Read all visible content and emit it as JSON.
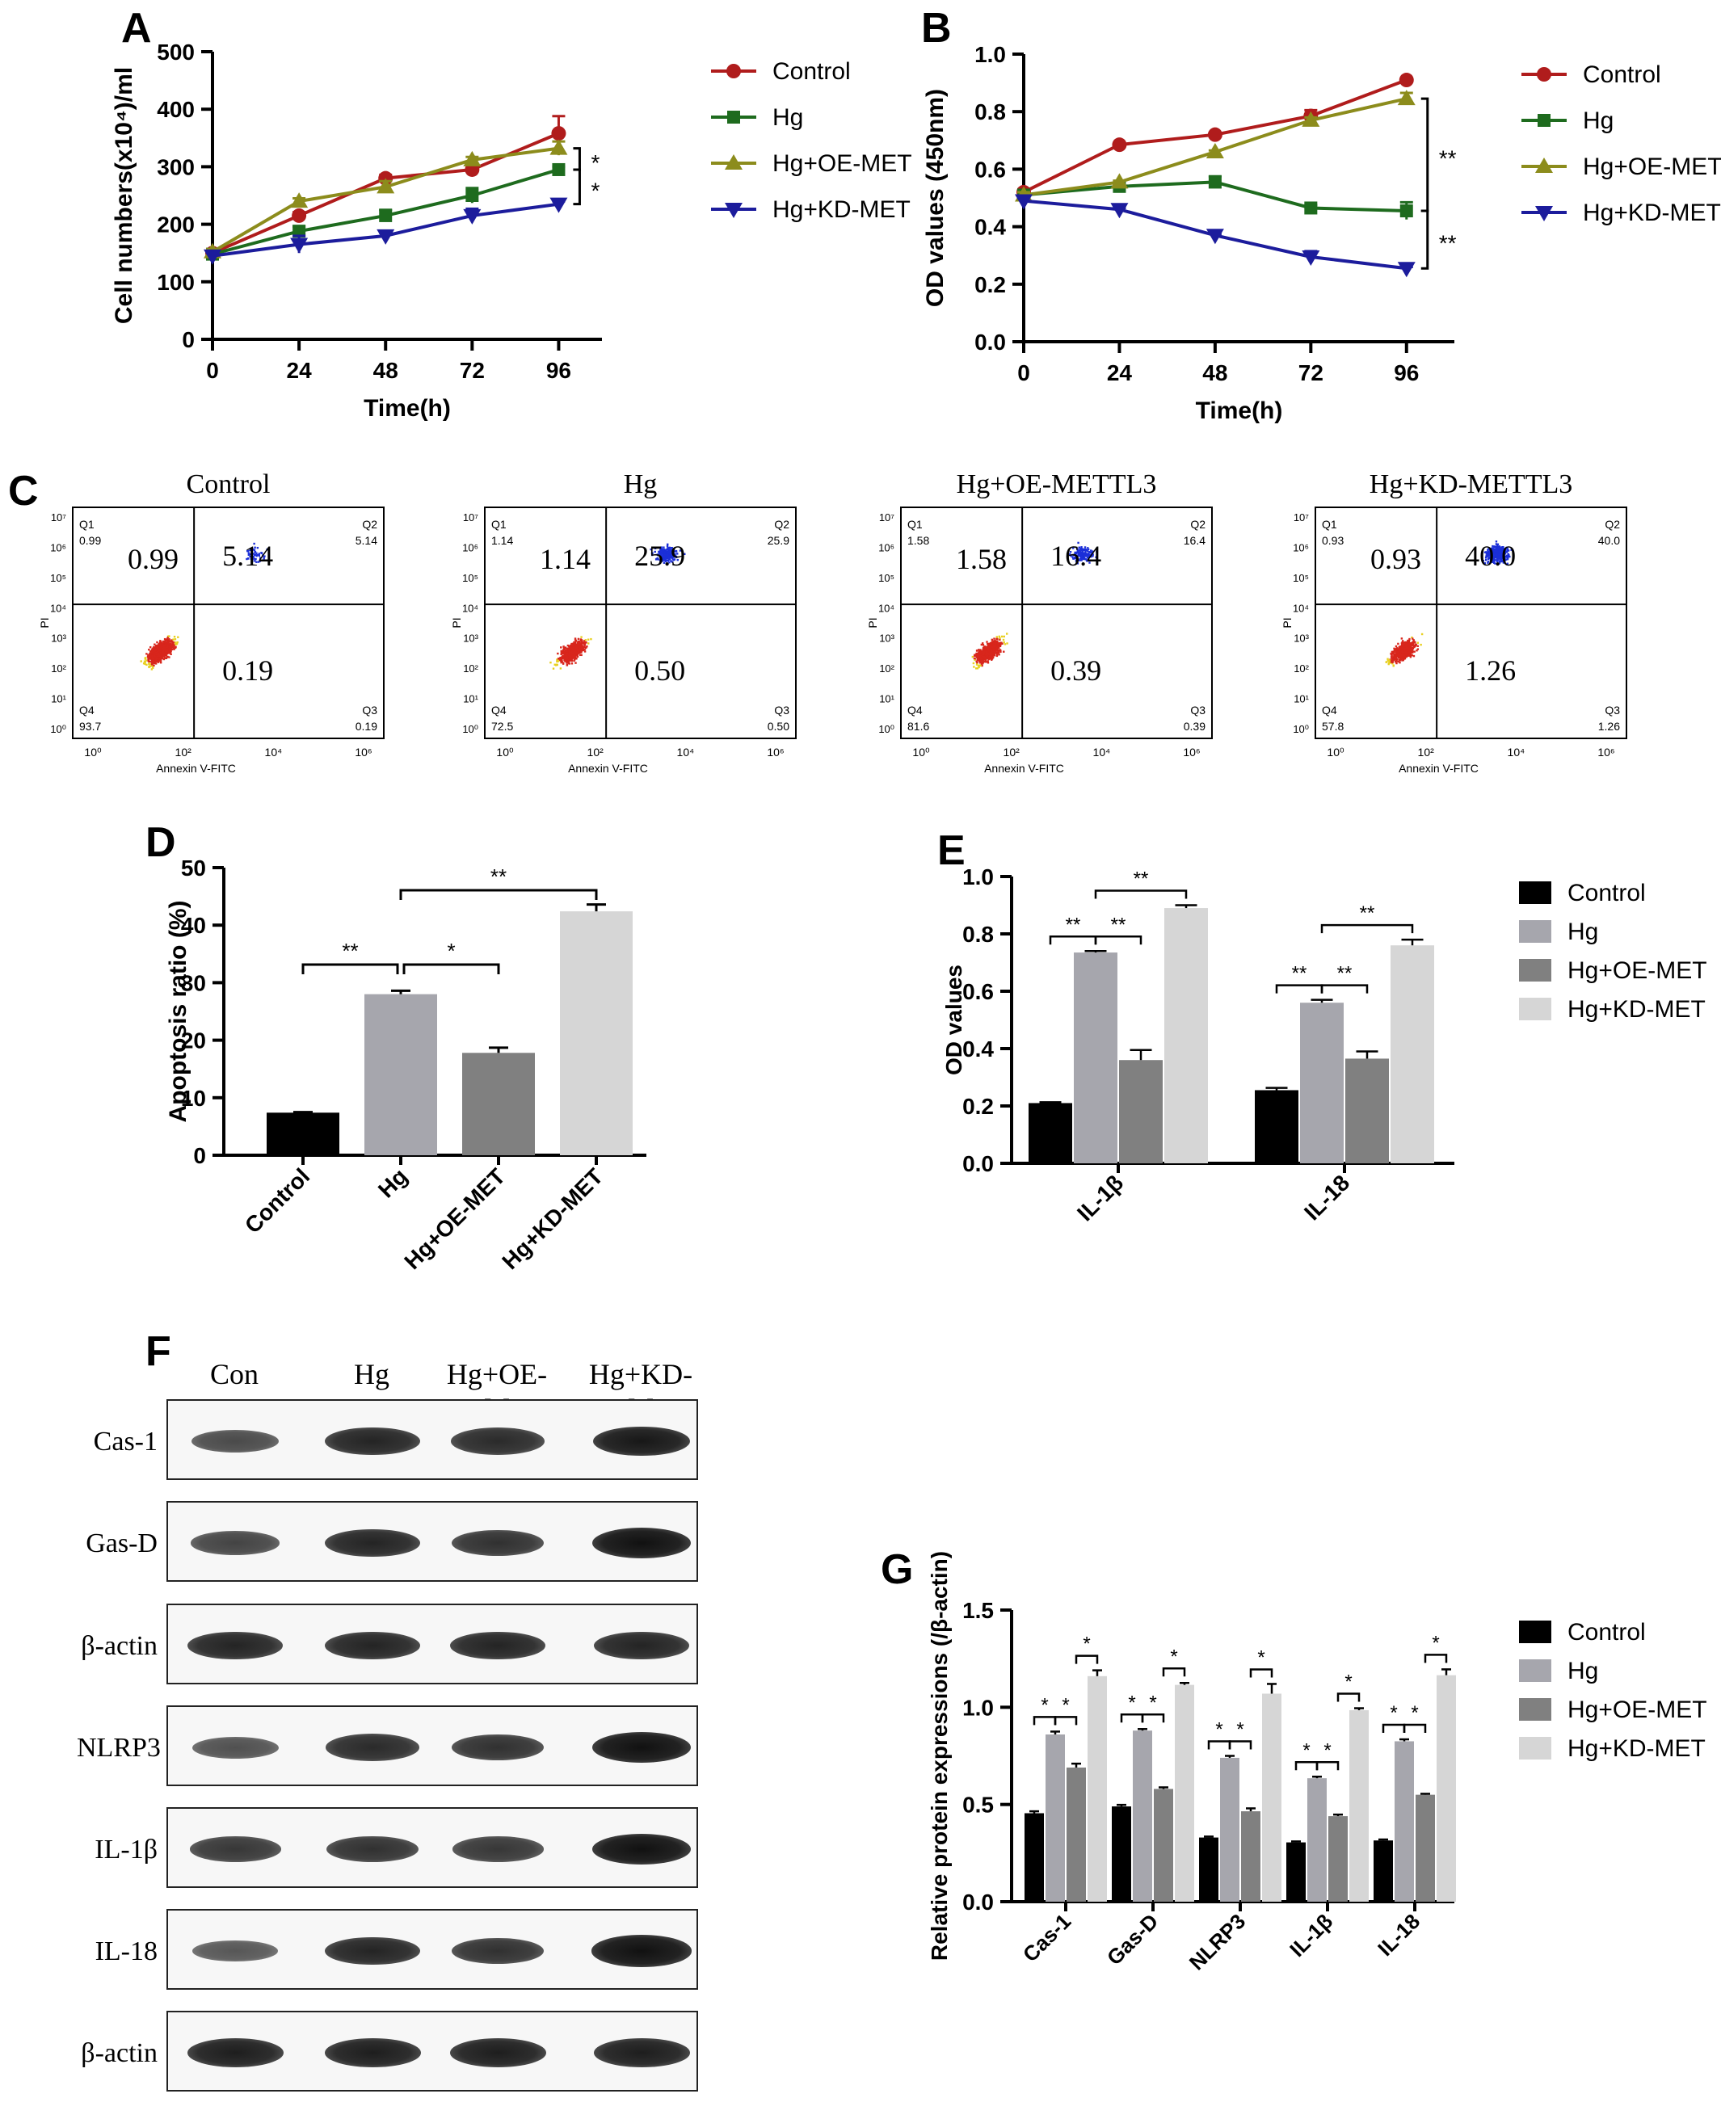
{
  "panels": {
    "A": "A",
    "B": "B",
    "C": "C",
    "D": "D",
    "E": "E",
    "F": "F",
    "G": "G"
  },
  "colors": {
    "control_line": "#b01c1c",
    "hg_line": "#1e6b1e",
    "oe_line": "#8c8c1c",
    "kd_line": "#1c1c9c",
    "bar_control": "#000000",
    "bar_hg": "#a6a6ad",
    "bar_oe": "#808080",
    "bar_kd": "#d6d6d6"
  },
  "chart_data": [
    {
      "id": "A",
      "type": "line",
      "xlabel": "Time(h)",
      "ylabel": "Cell numbers(x10⁴)/ml",
      "x": [
        0,
        24,
        48,
        72,
        96
      ],
      "xlim": [
        0,
        108
      ],
      "ylim": [
        0,
        500
      ],
      "yticks": [
        0,
        100,
        200,
        300,
        400,
        500
      ],
      "series": [
        {
          "name": "Control",
          "marker": "circle",
          "values": [
            150,
            215,
            280,
            295,
            358
          ],
          "err": [
            5,
            6,
            6,
            7,
            30
          ]
        },
        {
          "name": "Hg",
          "marker": "square",
          "values": [
            148,
            188,
            215,
            250,
            295
          ],
          "err": [
            5,
            8,
            10,
            13,
            5
          ]
        },
        {
          "name": "Hg+OE-MET",
          "marker": "triangle-up",
          "values": [
            152,
            240,
            265,
            312,
            332
          ],
          "err": [
            5,
            5,
            10,
            5,
            12
          ]
        },
        {
          "name": "Hg+KD-MET",
          "marker": "triangle-down",
          "values": [
            145,
            165,
            180,
            215,
            235
          ],
          "err": [
            5,
            15,
            5,
            12,
            5
          ]
        }
      ],
      "significance": [
        "*",
        "*"
      ],
      "legend": "right"
    },
    {
      "id": "B",
      "type": "line",
      "xlabel": "Time(h)",
      "ylabel": "OD values (450nm)",
      "x": [
        0,
        24,
        48,
        72,
        96
      ],
      "xlim": [
        0,
        108
      ],
      "ylim": [
        0,
        1.0
      ],
      "yticks": [
        0.0,
        0.2,
        0.4,
        0.6,
        0.8,
        1.0
      ],
      "series": [
        {
          "name": "Control",
          "marker": "circle",
          "values": [
            0.52,
            0.685,
            0.72,
            0.785,
            0.91
          ],
          "err": [
            0.01,
            0.005,
            0.005,
            0.02,
            0.005
          ]
        },
        {
          "name": "Hg",
          "marker": "square",
          "values": [
            0.51,
            0.54,
            0.555,
            0.465,
            0.455
          ],
          "err": [
            0.01,
            0.01,
            0.02,
            0.01,
            0.03
          ]
        },
        {
          "name": "Hg+OE-MET",
          "marker": "triangle-up",
          "values": [
            0.51,
            0.555,
            0.66,
            0.77,
            0.845
          ],
          "err": [
            0.01,
            0.005,
            0.005,
            0.01,
            0.02
          ]
        },
        {
          "name": "Hg+KD-MET",
          "marker": "triangle-down",
          "values": [
            0.49,
            0.46,
            0.37,
            0.295,
            0.255
          ],
          "err": [
            0.01,
            0.005,
            0.005,
            0.02,
            0.005
          ]
        }
      ],
      "significance": [
        "**",
        "**"
      ],
      "legend": "right"
    },
    {
      "id": "C",
      "type": "scatter",
      "xlabel": "Annexin V-FITC",
      "ylabel": "PI",
      "xticks": [
        "10⁰",
        "10²",
        "10⁴",
        "10⁶"
      ],
      "yticks": [
        "10⁰",
        "10¹",
        "10²",
        "10³",
        "10⁴",
        "10⁵",
        "10⁶",
        "10⁷"
      ],
      "plots": [
        {
          "title": "Control",
          "Q1": "0.99",
          "Q2": "5.14",
          "Q3": "0.19",
          "Q4": "93.7",
          "big": [
            "0.99",
            "5.14",
            "0.19"
          ]
        },
        {
          "title": "Hg",
          "Q1": "1.14",
          "Q2": "25.9",
          "Q3": "0.50",
          "Q4": "72.5",
          "big": [
            "1.14",
            "25.9",
            "0.50"
          ]
        },
        {
          "title": "Hg+OE-METTL3",
          "Q1": "1.58",
          "Q2": "16.4",
          "Q3": "0.39",
          "Q4": "81.6",
          "big": [
            "1.58",
            "16.4",
            "0.39"
          ]
        },
        {
          "title": "Hg+KD-METTL3",
          "Q1": "0.93",
          "Q2": "40.0",
          "Q3": "1.26",
          "Q4": "57.8",
          "big": [
            "0.93",
            "40.0",
            "1.26"
          ]
        }
      ],
      "quadrant_labels": [
        "Q1",
        "Q2",
        "Q3",
        "Q4"
      ]
    },
    {
      "id": "D",
      "type": "bar",
      "ylabel": "Apoptosis ratio (%)",
      "ylim": [
        0,
        50
      ],
      "yticks": [
        0,
        10,
        20,
        30,
        40,
        50
      ],
      "categories": [
        "Control",
        "Hg",
        "Hg+OE-MET",
        "Hg+KD-MET"
      ],
      "values": [
        7.4,
        28.0,
        17.8,
        42.4
      ],
      "err": [
        0.1,
        0.6,
        0.9,
        1.2
      ],
      "significance": [
        "**",
        "*",
        "**"
      ]
    },
    {
      "id": "E",
      "type": "bar",
      "ylabel": "OD values",
      "ylim": [
        0,
        1.0
      ],
      "yticks": [
        0.0,
        0.2,
        0.4,
        0.6,
        0.8,
        1.0
      ],
      "categories": [
        "IL-1β",
        "IL-18"
      ],
      "series": [
        {
          "name": "Control",
          "values": [
            0.21,
            0.255
          ],
          "err": [
            0.003,
            0.008
          ]
        },
        {
          "name": "Hg",
          "values": [
            0.735,
            0.56
          ],
          "err": [
            0.005,
            0.01
          ]
        },
        {
          "name": "Hg+OE-MET",
          "values": [
            0.36,
            0.365
          ],
          "err": [
            0.035,
            0.025
          ]
        },
        {
          "name": "Hg+KD-MET",
          "values": [
            0.89,
            0.76
          ],
          "err": [
            0.01,
            0.02
          ]
        }
      ],
      "significance": [
        "**",
        "**",
        "**",
        "**",
        "**",
        "**"
      ],
      "legend": "right"
    },
    {
      "id": "G",
      "type": "bar",
      "ylabel": "Relative protein expressions (/β-actin)",
      "ylim": [
        0,
        1.5
      ],
      "yticks": [
        0.0,
        0.5,
        1.0,
        1.5
      ],
      "categories": [
        "Cas-1",
        "Gas-D",
        "NLRP3",
        "IL-1β",
        "IL-18"
      ],
      "series": [
        {
          "name": "Control",
          "values": [
            0.455,
            0.49,
            0.33,
            0.305,
            0.315
          ],
          "err": [
            0.01,
            0.008,
            0.005,
            0.005,
            0.005
          ]
        },
        {
          "name": "Hg",
          "values": [
            0.86,
            0.88,
            0.74,
            0.635,
            0.825
          ],
          "err": [
            0.015,
            0.008,
            0.01,
            0.008,
            0.01
          ]
        },
        {
          "name": "Hg+OE-MET",
          "values": [
            0.69,
            0.58,
            0.465,
            0.44,
            0.55
          ],
          "err": [
            0.02,
            0.008,
            0.015,
            0.008,
            0.005
          ]
        },
        {
          "name": "Hg+KD-MET",
          "values": [
            1.16,
            1.115,
            1.07,
            0.985,
            1.165
          ],
          "err": [
            0.03,
            0.01,
            0.05,
            0.01,
            0.03
          ]
        }
      ],
      "significance": [
        "*"
      ],
      "legend": "right"
    }
  ],
  "blot": {
    "lanes": [
      "Con",
      "Hg",
      "Hg+OE-M",
      "Hg+KD-M"
    ],
    "rows": [
      {
        "label": "Cas-1",
        "intensity": [
          0.55,
          0.85,
          0.8,
          0.95
        ]
      },
      {
        "label": "Gas-D",
        "intensity": [
          0.6,
          0.85,
          0.75,
          1.0
        ]
      },
      {
        "label": "β-actin",
        "intensity": [
          0.85,
          0.85,
          0.85,
          0.85
        ]
      },
      {
        "label": "NLRP3",
        "intensity": [
          0.5,
          0.8,
          0.75,
          1.0
        ]
      },
      {
        "label": "IL-1β",
        "intensity": [
          0.7,
          0.75,
          0.7,
          1.0
        ]
      },
      {
        "label": "IL-18",
        "intensity": [
          0.45,
          0.85,
          0.75,
          1.05
        ]
      },
      {
        "label": "β-actin",
        "intensity": [
          0.9,
          0.9,
          0.9,
          0.9
        ]
      }
    ]
  }
}
